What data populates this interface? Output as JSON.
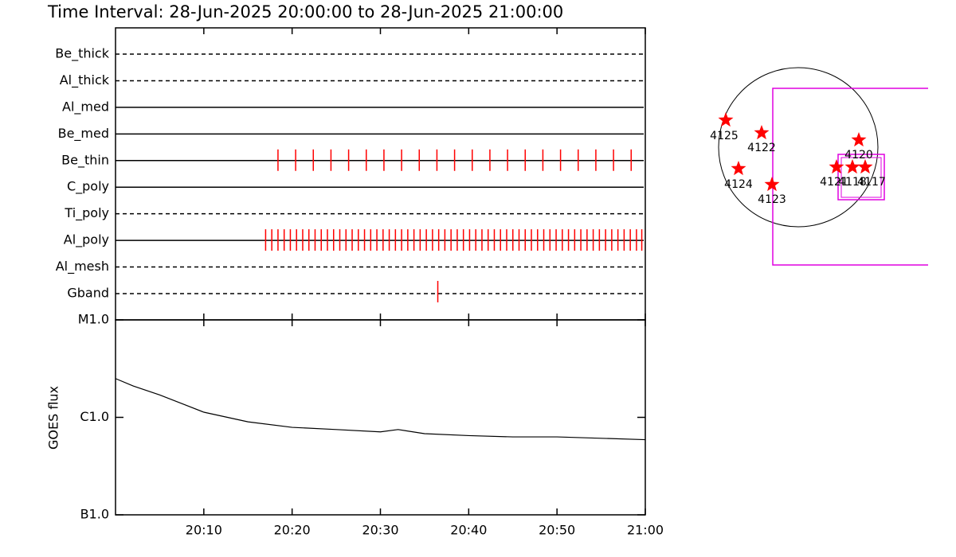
{
  "chart_data": [
    {
      "type": "timeline",
      "title": "Time Interval: 28-Jun-2025 20:00:00 to 28-Jun-2025 21:00:00",
      "categories": [
        "Be_thick",
        "Al_thick",
        "Al_med",
        "Be_med",
        "Be_thin",
        "C_poly",
        "Ti_poly",
        "Al_poly",
        "Al_mesh",
        "Gband"
      ],
      "line_styles": [
        "dashed",
        "dashed",
        "solid",
        "solid",
        "solid",
        "solid",
        "dashed",
        "solid",
        "dashed",
        "dashed"
      ],
      "color": "#ff0000",
      "xlim": [
        0,
        60
      ],
      "events": [
        [],
        [],
        [],
        [],
        [
          18.4,
          20.4,
          22.4,
          24.4,
          26.4,
          28.4,
          30.4,
          32.4,
          34.4,
          36.4,
          38.4,
          40.4,
          42.4,
          44.4,
          46.4,
          48.4,
          50.4,
          52.4,
          54.4,
          56.4,
          58.4
        ],
        [],
        [],
        [
          17.0,
          17.7,
          18.4,
          19.1,
          19.8,
          20.5,
          21.2,
          21.9,
          22.6,
          23.3,
          24.0,
          24.7,
          25.4,
          26.1,
          26.8,
          27.5,
          28.2,
          28.9,
          29.6,
          30.3,
          31.0,
          31.7,
          32.4,
          33.1,
          33.8,
          34.5,
          35.2,
          35.9,
          36.6,
          37.3,
          38.0,
          38.7,
          39.4,
          40.1,
          40.8,
          41.5,
          42.2,
          42.9,
          43.6,
          44.3,
          45.0,
          45.7,
          46.4,
          47.1,
          47.8,
          48.5,
          49.2,
          49.9,
          50.6,
          51.3,
          52.0,
          52.7,
          53.4,
          54.1,
          54.8,
          55.5,
          56.2,
          56.9,
          57.6,
          58.3,
          59.0,
          59.6
        ],
        [],
        [
          36.5
        ]
      ]
    },
    {
      "type": "line",
      "ylabel": "GOES flux",
      "log_y": true,
      "color": "#000000",
      "x": [
        0,
        2,
        5,
        10,
        15,
        20,
        25,
        30,
        32,
        35,
        40,
        45,
        50,
        55,
        60
      ],
      "values": [
        2.5e-06,
        2.1e-06,
        1.7e-06,
        1.13e-06,
        9e-07,
        7.9e-07,
        7.5e-07,
        7.1e-07,
        7.5e-07,
        6.8e-07,
        6.5e-07,
        6.3e-07,
        6.3e-07,
        6.1e-07,
        5.9e-07
      ],
      "xlim": [
        0,
        60
      ],
      "xticks": [
        {
          "value": 10,
          "label": "20:10"
        },
        {
          "value": 20,
          "label": "20:20"
        },
        {
          "value": 30,
          "label": "20:30"
        },
        {
          "value": 40,
          "label": "20:40"
        },
        {
          "value": 50,
          "label": "20:50"
        },
        {
          "value": 60,
          "label": "21:00"
        }
      ],
      "ylim": [
        1e-07,
        1e-05
      ],
      "yticks": [
        {
          "value": 1e-07,
          "label": "B1.0"
        },
        {
          "value": 1e-06,
          "label": "C1.0"
        },
        {
          "value": 1e-05,
          "label": "M1.0"
        }
      ]
    },
    {
      "type": "map",
      "labels": [
        "4125",
        "4122",
        "4120",
        "4124",
        "4123",
        "4121",
        "4118",
        "4117"
      ],
      "color": "#ff0000"
    }
  ]
}
